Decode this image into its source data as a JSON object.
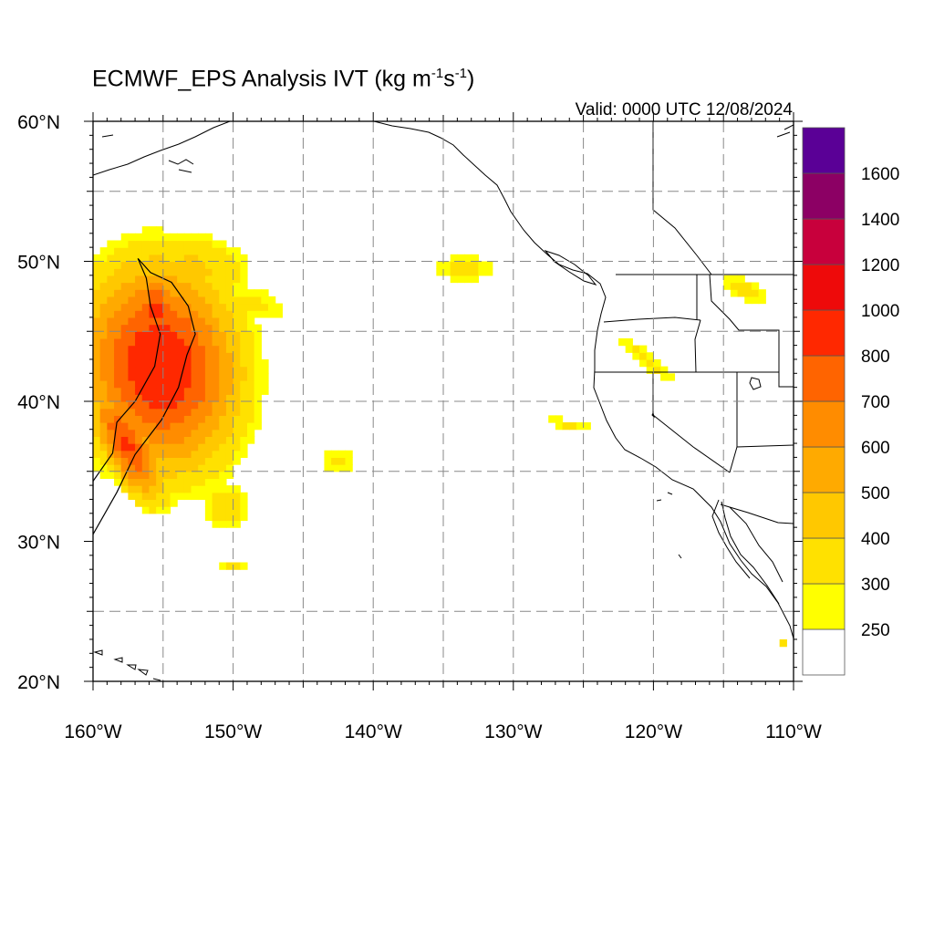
{
  "title": {
    "main": "ECMWF_EPS Analysis IVT (kg m",
    "exp1": "-1",
    "mid": "s",
    "exp2": "-1",
    "close": ")"
  },
  "valid": "Valid: 0000 UTC 12/08/2024",
  "axes": {
    "lon_min": -160,
    "lon_max": -110,
    "lat_min": 20,
    "lat_max": 60,
    "x_ticks": [
      {
        "value": -160,
        "label": "160°W"
      },
      {
        "value": -150,
        "label": "150°W"
      },
      {
        "value": -140,
        "label": "140°W"
      },
      {
        "value": -130,
        "label": "130°W"
      },
      {
        "value": -120,
        "label": "120°W"
      },
      {
        "value": -110,
        "label": "110°W"
      }
    ],
    "y_ticks": [
      {
        "value": 20,
        "label": "20°N"
      },
      {
        "value": 30,
        "label": "30°N"
      },
      {
        "value": 40,
        "label": "40°N"
      },
      {
        "value": 50,
        "label": "50°N"
      },
      {
        "value": 60,
        "label": "60°N"
      }
    ],
    "grid_lon": [
      -155,
      -150,
      -145,
      -140,
      -135,
      -130,
      -125,
      -120,
      -115
    ],
    "grid_lat": [
      25,
      35,
      40,
      45,
      50,
      55
    ]
  },
  "colorbar": {
    "levels": [
      250,
      300,
      400,
      500,
      600,
      700,
      800,
      1000,
      1200,
      1400,
      1600
    ],
    "colors": [
      "#ffffff",
      "#ffff00",
      "#ffe100",
      "#ffc800",
      "#ffaa00",
      "#ff8c00",
      "#ff6400",
      "#ff2800",
      "#ee0a0a",
      "#c8003c",
      "#8c0064",
      "#5a0096"
    ]
  },
  "ivt_regions": [
    {
      "name": "central-pacific-ar",
      "cx": -155.2,
      "cy": 42.5,
      "rx": 7.2,
      "ry": 9.5,
      "rot": 8,
      "peak": 900
    },
    {
      "name": "ar-core-north",
      "cx": -155.5,
      "cy": 46.5,
      "rx": 2.2,
      "ry": 4.0,
      "rot": 0,
      "peak": 820
    },
    {
      "name": "ar-core-south",
      "cx": -157.6,
      "cy": 37.0,
      "rx": 2.2,
      "ry": 5.8,
      "rot": 28,
      "peak": 820
    },
    {
      "name": "ar-north-lobe",
      "cx": -153.0,
      "cy": 49.5,
      "rx": 6.5,
      "ry": 4.0,
      "rot": -10,
      "peak": 420
    },
    {
      "name": "ar-east-flank",
      "cx": -149.0,
      "cy": 47.0,
      "rx": 5.5,
      "ry": 2.2,
      "rot": -10,
      "peak": 330
    },
    {
      "name": "south-patch",
      "cx": -150.5,
      "cy": 32.5,
      "rx": 3.0,
      "ry": 2.8,
      "rot": 20,
      "peak": 360
    },
    {
      "name": "south-patch-tail",
      "cx": -150.0,
      "cy": 28.3,
      "rx": 1.8,
      "ry": 0.9,
      "rot": 0,
      "peak": 320
    },
    {
      "name": "mid-patch",
      "cx": -142.5,
      "cy": 35.8,
      "rx": 2.5,
      "ry": 1.6,
      "rot": 0,
      "peak": 330
    },
    {
      "name": "gulf-of-alaska-patch",
      "cx": -133.5,
      "cy": 49.5,
      "rx": 4.5,
      "ry": 1.9,
      "rot": 0,
      "peak": 320
    },
    {
      "name": "california-plume",
      "cx": -126.0,
      "cy": 38.3,
      "rx": 3.8,
      "ry": 0.9,
      "rot": -12,
      "peak": 310
    },
    {
      "name": "pacific-northwest-plume-a",
      "cx": -120.5,
      "cy": 43.0,
      "rx": 6.2,
      "ry": 1.3,
      "rot": -38,
      "peak": 320
    },
    {
      "name": "pacific-northwest-plume-b",
      "cx": -113.5,
      "cy": 48.0,
      "rx": 4.0,
      "ry": 1.7,
      "rot": -20,
      "peak": 320
    },
    {
      "name": "baja-speck",
      "cx": -110.7,
      "cy": 22.8,
      "rx": 0.5,
      "ry": 0.4,
      "rot": 0,
      "peak": 310
    }
  ],
  "contour_800": [
    [
      -156.8,
      50.2
    ],
    [
      -155.9,
      49.2
    ],
    [
      -154.4,
      48.5
    ],
    [
      -153.2,
      46.8
    ],
    [
      -152.7,
      44.8
    ],
    [
      -153.3,
      43.3
    ],
    [
      -153.9,
      41.0
    ],
    [
      -155.1,
      38.7
    ],
    [
      -157.0,
      36.2
    ],
    [
      -158.3,
      33.5
    ],
    [
      -160.0,
      30.5
    ],
    [
      -160.0,
      34.3
    ],
    [
      -158.6,
      36.3
    ],
    [
      -158.3,
      38.5
    ],
    [
      -157.0,
      40.0
    ],
    [
      -155.6,
      42.5
    ],
    [
      -155.2,
      44.8
    ],
    [
      -155.9,
      46.8
    ],
    [
      -156.2,
      48.8
    ]
  ]
}
